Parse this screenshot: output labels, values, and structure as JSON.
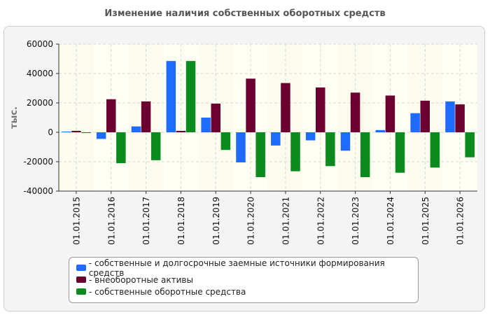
{
  "chart_data": {
    "type": "bar",
    "title": "Изменение наличия собственных оборотных средств",
    "ylabel": "тыс.",
    "xlabel": "",
    "ylim": [
      -40000,
      60000
    ],
    "yticks": [
      60000,
      40000,
      20000,
      0,
      -20000,
      -40000
    ],
    "grid": true,
    "legend_position": "bottom",
    "categories": [
      "01.01.2015",
      "01.01.2016",
      "01.01.2017",
      "01.01.2018",
      "01.01.2019",
      "01.01.2020",
      "01.01.2021",
      "01.01.2022",
      "01.01.2023",
      "01.01.2024",
      "01.01.2025",
      "01.01.2026"
    ],
    "series": [
      {
        "name": "- собственные и долгосрочные заемные источники формирования средств",
        "color": "#1f6bff",
        "values": [
          500,
          -4500,
          4000,
          48500,
          10000,
          -20500,
          -9000,
          -5500,
          -12500,
          1500,
          13000,
          21000
        ]
      },
      {
        "name": "- внеоборотные активы",
        "color": "#6b0030",
        "values": [
          1000,
          22500,
          21000,
          1000,
          19500,
          36500,
          33500,
          30500,
          27000,
          25000,
          21500,
          19000
        ]
      },
      {
        "name": "- собственные оборотные средства",
        "color": "#0b8a1e",
        "values": [
          -500,
          -21000,
          -19000,
          48500,
          -12000,
          -30500,
          -26500,
          -23000,
          -30500,
          -27500,
          -24000,
          -17000
        ]
      }
    ]
  }
}
